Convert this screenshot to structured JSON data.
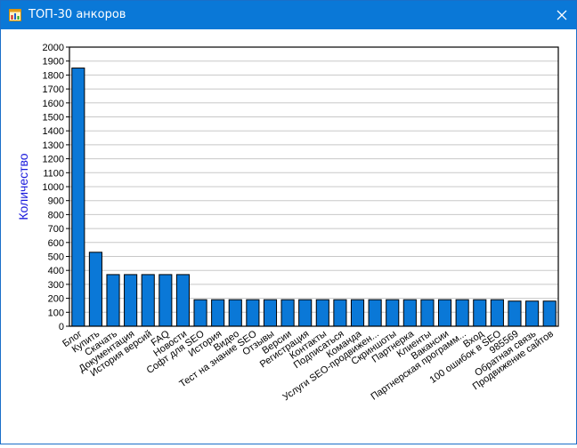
{
  "window": {
    "title": "ТОП-30 анкоров",
    "icon": "chart-app-icon",
    "close_icon": "close-icon"
  },
  "colors": {
    "titlebar": "#0a78d7",
    "bar_fill": "#0a78d7",
    "bar_stroke": "#000000",
    "grid": "#c8c8c8",
    "ylabel": "#1a1adc"
  },
  "chart_data": {
    "type": "bar",
    "title": "",
    "xlabel": "",
    "ylabel": "Количество",
    "ylim": [
      0,
      2000
    ],
    "ytick_step": 100,
    "grid": true,
    "categories": [
      "Блог",
      "Купить",
      "Скачать",
      "Документация",
      "История версий",
      "FAQ",
      "Новости",
      "Софт для SEO",
      "История",
      "Видео",
      "Тест на знание SEO",
      "Отзывы",
      "Версии",
      "Регистрация",
      "Контакты",
      "Подписаться",
      "Команда",
      "Услуги SEO-продвижен...",
      "Скриншоты",
      "Партнерка",
      "Клиенты",
      "Вакансии",
      "Партнерская программ...",
      "Вход",
      "100 ошибок в SEO",
      "985569",
      "Обратная связь",
      "Продвижение сайтов"
    ],
    "values": [
      1850,
      530,
      370,
      370,
      370,
      370,
      370,
      190,
      190,
      190,
      190,
      190,
      190,
      190,
      190,
      190,
      190,
      190,
      190,
      190,
      190,
      190,
      190,
      190,
      190,
      180,
      180,
      180
    ]
  }
}
